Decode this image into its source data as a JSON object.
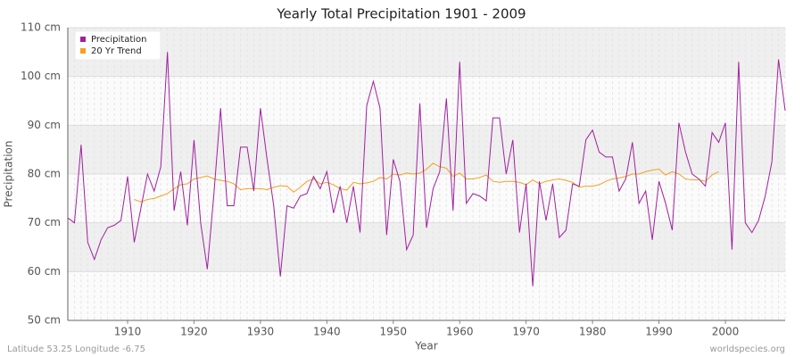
{
  "chart_data": {
    "type": "line",
    "title": "Yearly Total Precipitation 1901 - 2009",
    "x_label": "Year",
    "y_label": "Precipitation",
    "footer_left": "Latitude 53.25 Longitude -6.75",
    "footer_right": "worldspecies.org",
    "x": [
      1901,
      1902,
      1903,
      1904,
      1905,
      1906,
      1907,
      1908,
      1909,
      1910,
      1911,
      1912,
      1913,
      1914,
      1915,
      1916,
      1917,
      1918,
      1919,
      1920,
      1921,
      1922,
      1923,
      1924,
      1925,
      1926,
      1927,
      1928,
      1929,
      1930,
      1931,
      1932,
      1933,
      1934,
      1935,
      1936,
      1937,
      1938,
      1939,
      1940,
      1941,
      1942,
      1943,
      1944,
      1945,
      1946,
      1947,
      1948,
      1949,
      1950,
      1951,
      1952,
      1953,
      1954,
      1955,
      1956,
      1957,
      1958,
      1959,
      1960,
      1961,
      1962,
      1963,
      1964,
      1965,
      1966,
      1967,
      1968,
      1969,
      1970,
      1971,
      1972,
      1973,
      1974,
      1975,
      1976,
      1977,
      1978,
      1979,
      1980,
      1981,
      1982,
      1983,
      1984,
      1985,
      1986,
      1987,
      1988,
      1989,
      1990,
      1991,
      1992,
      1993,
      1994,
      1995,
      1996,
      1997,
      1998,
      1999,
      2000,
      2001,
      2002,
      2003,
      2004,
      2005,
      2006,
      2007,
      2008,
      2009
    ],
    "series": [
      {
        "name": "Precipitation",
        "color": "#a020a0",
        "values": [
          71,
          70,
          86,
          66,
          62.5,
          66.5,
          69,
          69.5,
          70.5,
          79.5,
          66,
          73,
          80,
          76.5,
          81.5,
          105,
          72.5,
          80.5,
          69.5,
          87,
          70,
          60.5,
          76,
          93.5,
          73.5,
          73.5,
          85.5,
          85.5,
          76.5,
          93.5,
          83,
          73.5,
          59,
          73.5,
          73,
          75.5,
          76,
          79.5,
          77,
          80.5,
          72,
          77.5,
          70,
          77.5,
          68,
          94,
          99,
          93.5,
          67.5,
          83,
          78.5,
          64.5,
          67.5,
          94.5,
          69,
          77,
          80.5,
          95.5,
          72.5,
          103,
          74,
          76,
          75.5,
          74.5,
          91.5,
          91.5,
          80,
          87,
          68,
          78,
          57,
          78.5,
          70.5,
          78,
          67,
          68.5,
          78,
          77.5,
          87,
          89,
          84.5,
          83.5,
          83.5,
          76.5,
          79,
          86.5,
          74,
          76.5,
          66.5,
          78.5,
          74,
          68.5,
          90.5,
          84.5,
          80,
          79,
          77.5,
          88.5,
          86.5,
          90.5,
          64.5,
          103,
          70,
          68,
          70.5,
          75.5,
          82.5,
          103.5,
          93
        ]
      },
      {
        "name": "20 Yr Trend",
        "color": "#f5a020",
        "values": [
          null,
          null,
          null,
          null,
          null,
          null,
          null,
          null,
          null,
          null,
          74.8,
          74.3,
          74.8,
          75.0,
          75.5,
          76.0,
          77.0,
          77.8,
          78.0,
          79.0,
          79.3,
          79.6,
          79.0,
          78.7,
          78.5,
          78.0,
          76.8,
          77.0,
          77.0,
          77.0,
          76.8,
          77.3,
          77.6,
          77.5,
          76.3,
          77.3,
          78.5,
          79.0,
          78.0,
          78.3,
          77.8,
          77.0,
          76.7,
          78.3,
          78.0,
          78.2,
          78.5,
          79.3,
          79.0,
          80.0,
          79.8,
          80.2,
          80.0,
          80.2,
          81.0,
          82.2,
          81.5,
          81.2,
          79.5,
          80.2,
          79.0,
          79.0,
          79.3,
          79.8,
          78.5,
          78.3,
          78.5,
          78.5,
          78.3,
          77.8,
          78.8,
          78.0,
          78.5,
          78.8,
          79.0,
          78.7,
          78.3,
          77.3,
          77.5,
          77.5,
          77.8,
          78.5,
          79.0,
          79.2,
          79.5,
          80.0,
          80.0,
          80.5,
          80.8,
          81.0,
          79.8,
          80.5,
          80.0,
          79.0,
          78.8,
          78.8,
          78.5,
          79.8,
          80.5,
          null,
          null,
          null,
          null,
          null,
          null,
          null,
          null,
          null,
          null
        ]
      }
    ],
    "xlim": [
      1901,
      2009
    ],
    "xticks": [
      1910,
      1920,
      1930,
      1940,
      1950,
      1960,
      1970,
      1980,
      1990,
      2000
    ],
    "ylim": [
      50,
      110
    ],
    "yticks": [
      {
        "value": 50,
        "label": "50 cm"
      },
      {
        "value": 60,
        "label": "60 cm"
      },
      {
        "value": 70,
        "label": "70 cm"
      },
      {
        "value": 80,
        "label": "80 cm"
      },
      {
        "value": 90,
        "label": "90 cm"
      },
      {
        "value": 100,
        "label": "100 cm"
      },
      {
        "value": 110,
        "label": "110 cm"
      }
    ],
    "grid": true,
    "legend": "upper left"
  }
}
